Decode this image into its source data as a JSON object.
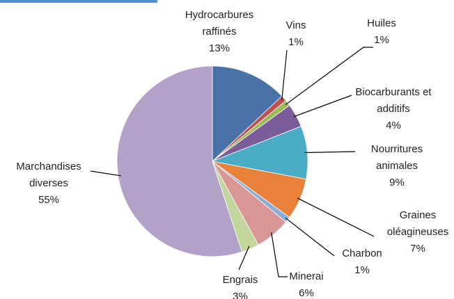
{
  "chart_data": {
    "type": "pie",
    "categories": [
      "Hydrocarbures raffinés",
      "Vins",
      "Huiles",
      "Biocarburants et additifs",
      "Nourritures animales",
      "Graines oléagineuses",
      "Charbon",
      "Minerai",
      "Engrais",
      "Marchandises diverses"
    ],
    "values": [
      13,
      1,
      1,
      4,
      9,
      7,
      1,
      6,
      3,
      55
    ],
    "value_labels": [
      "13%",
      "1%",
      "1%",
      "4%",
      "9%",
      "7%",
      "1%",
      "6%",
      "3%",
      "55%"
    ],
    "colors": [
      "#4a72a8",
      "#c0504d",
      "#9bbb59",
      "#7a5c9a",
      "#4bacc6",
      "#e8823a",
      "#8aaed8",
      "#d99694",
      "#c3d69b",
      "#b3a2c7"
    ]
  }
}
